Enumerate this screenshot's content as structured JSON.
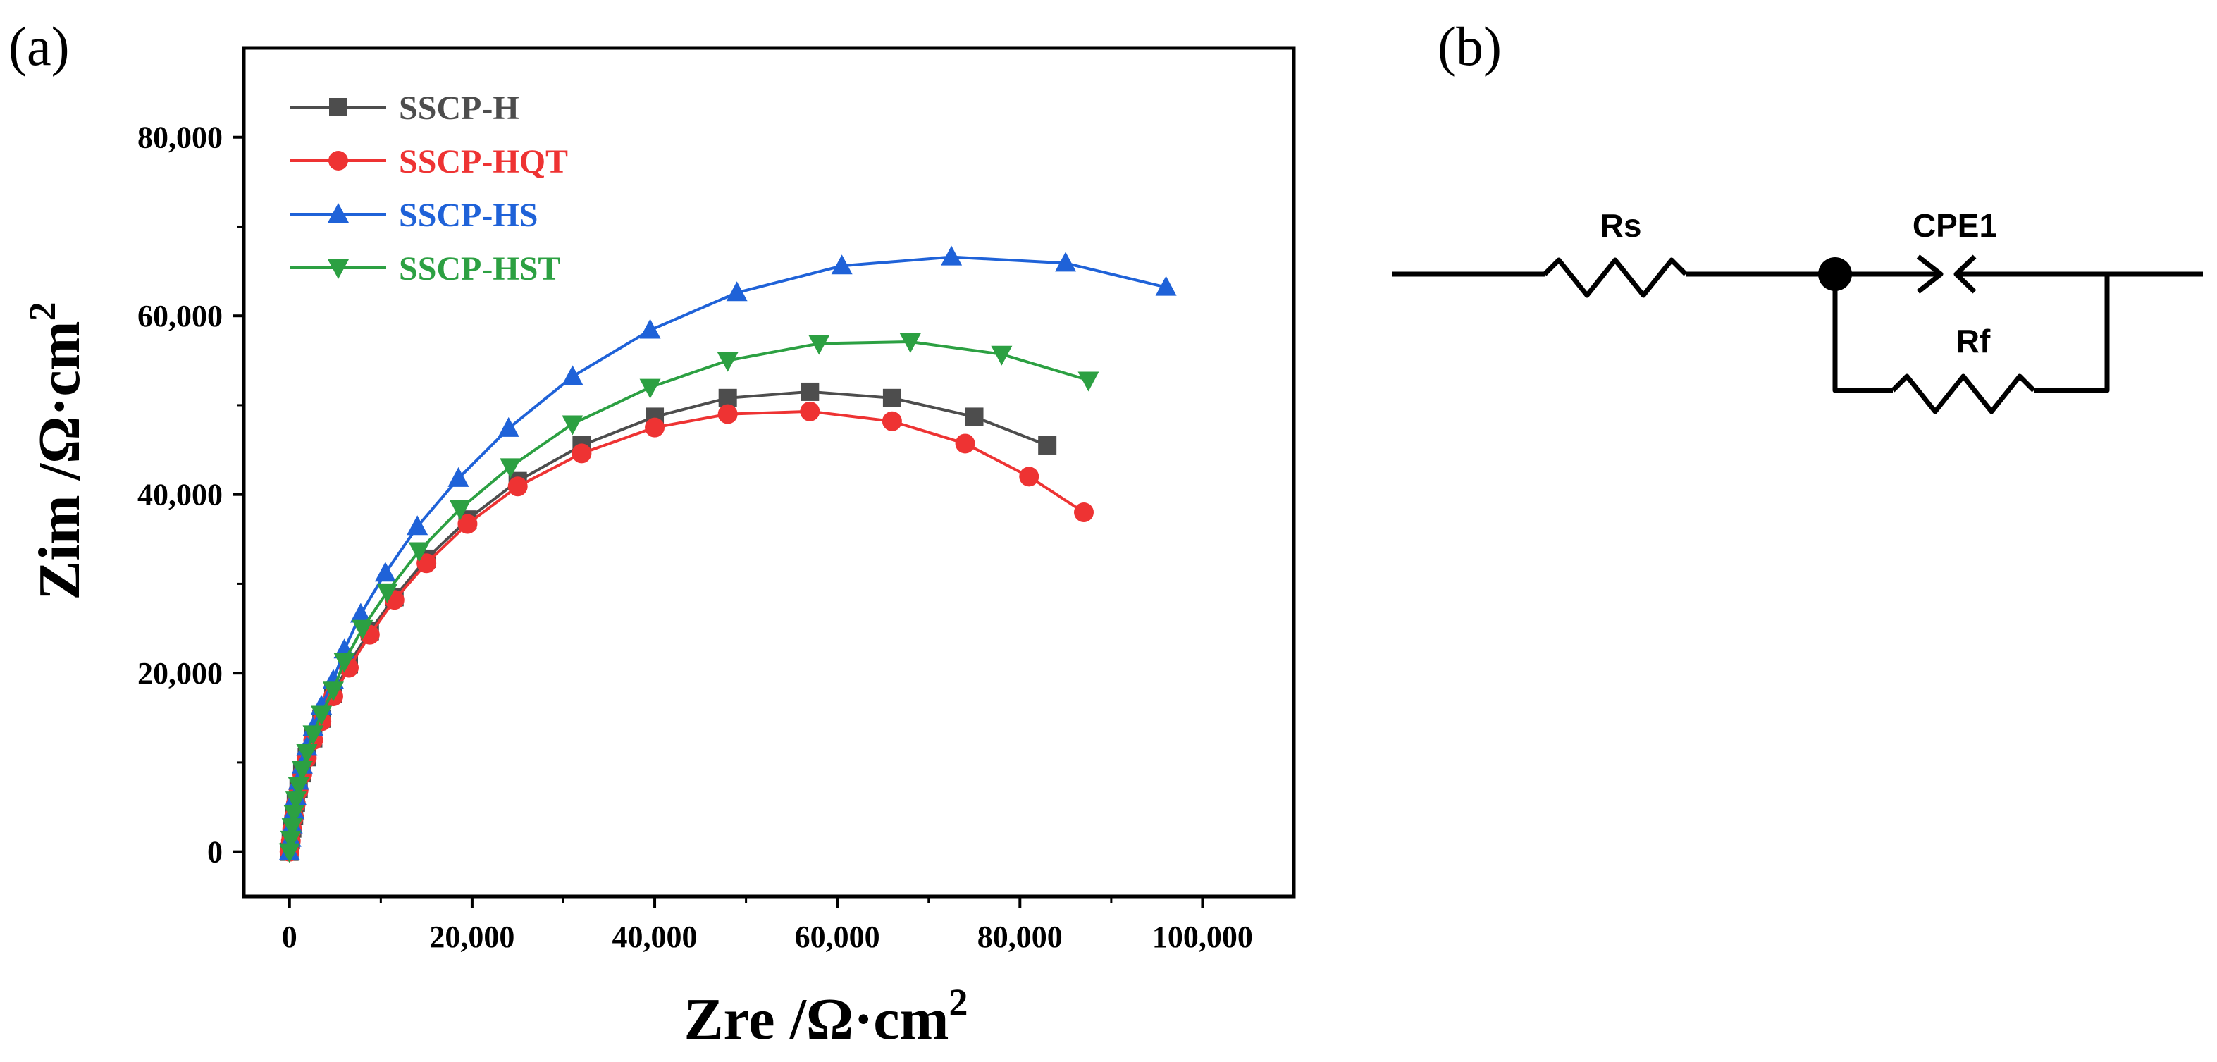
{
  "panel_a_label": "(a)",
  "panel_b_label": "(b)",
  "chart_data": {
    "type": "scatter",
    "title": "",
    "xlabel": "Zre /Ω·cm",
    "xlabel_sup": "2",
    "ylabel": "Zim /Ω·cm",
    "ylabel_sup": "2",
    "xlim": [
      -5000,
      110000
    ],
    "ylim": [
      -5000,
      90000
    ],
    "xticks": [
      0,
      20000,
      40000,
      60000,
      80000,
      100000
    ],
    "xtick_labels": [
      "0",
      "20,000",
      "40,000",
      "60,000",
      "80,000",
      "100,000"
    ],
    "yticks": [
      0,
      20000,
      40000,
      60000,
      80000
    ],
    "ytick_labels": [
      "0",
      "20,000",
      "40,000",
      "60,000",
      "80,000"
    ],
    "legend_position": "top-left",
    "series": [
      {
        "name": "SSCP-H",
        "color": "#4d4d4d",
        "marker": "square",
        "x": [
          0,
          150,
          300,
          500,
          700,
          1000,
          1400,
          1900,
          2600,
          3500,
          4800,
          6500,
          8800,
          11500,
          15000,
          19500,
          25000,
          32000,
          40000,
          48000,
          57000,
          66000,
          75000,
          83000
        ],
        "y": [
          0,
          1300,
          2600,
          4000,
          5500,
          7000,
          8800,
          10600,
          12700,
          14900,
          17700,
          21000,
          24700,
          28500,
          32800,
          37200,
          41500,
          45500,
          48700,
          50800,
          51500,
          50800,
          48700,
          45500
        ]
      },
      {
        "name": "SSCP-HQT",
        "color": "#ee3333",
        "marker": "circle",
        "x": [
          0,
          150,
          300,
          500,
          700,
          1000,
          1400,
          1900,
          2600,
          3500,
          4800,
          6500,
          8800,
          11500,
          15000,
          19500,
          25000,
          32000,
          40000,
          48000,
          57000,
          66000,
          74000,
          81000,
          87000
        ],
        "y": [
          0,
          1200,
          2500,
          3900,
          5400,
          6900,
          8700,
          10500,
          12500,
          14600,
          17400,
          20600,
          24300,
          28200,
          32300,
          36700,
          40900,
          44600,
          47500,
          49000,
          49300,
          48200,
          45700,
          42000,
          38000
        ]
      },
      {
        "name": "SSCP-HS",
        "color": "#1f62d8",
        "marker": "triangle-up",
        "x": [
          0,
          150,
          300,
          500,
          700,
          1000,
          1400,
          1900,
          2600,
          3500,
          4800,
          6000,
          7800,
          10500,
          14000,
          18500,
          24000,
          31000,
          39500,
          49000,
          60500,
          72500,
          85000,
          96000
        ],
        "y": [
          0,
          1500,
          3000,
          4600,
          6200,
          7900,
          9700,
          11700,
          13900,
          16300,
          19200,
          22600,
          26600,
          31200,
          36400,
          41800,
          47400,
          53200,
          58400,
          62600,
          65600,
          66600,
          65900,
          63200
        ]
      },
      {
        "name": "SSCP-HST",
        "color": "#2ca042",
        "marker": "triangle-down",
        "x": [
          0,
          150,
          300,
          500,
          700,
          1000,
          1400,
          1900,
          2600,
          3500,
          4800,
          6000,
          8000,
          10700,
          14200,
          18700,
          24200,
          31000,
          39500,
          48000,
          58000,
          68000,
          78000,
          87500
        ],
        "y": [
          0,
          1400,
          2800,
          4300,
          5800,
          7400,
          9200,
          11100,
          13200,
          15400,
          18100,
          21300,
          25000,
          29100,
          33700,
          38400,
          43100,
          47900,
          52000,
          55000,
          56900,
          57100,
          55700,
          52800
        ]
      }
    ]
  },
  "circuit": {
    "labels": {
      "rs": "Rs",
      "cpe": "CPE1",
      "rf": "Rf"
    }
  }
}
